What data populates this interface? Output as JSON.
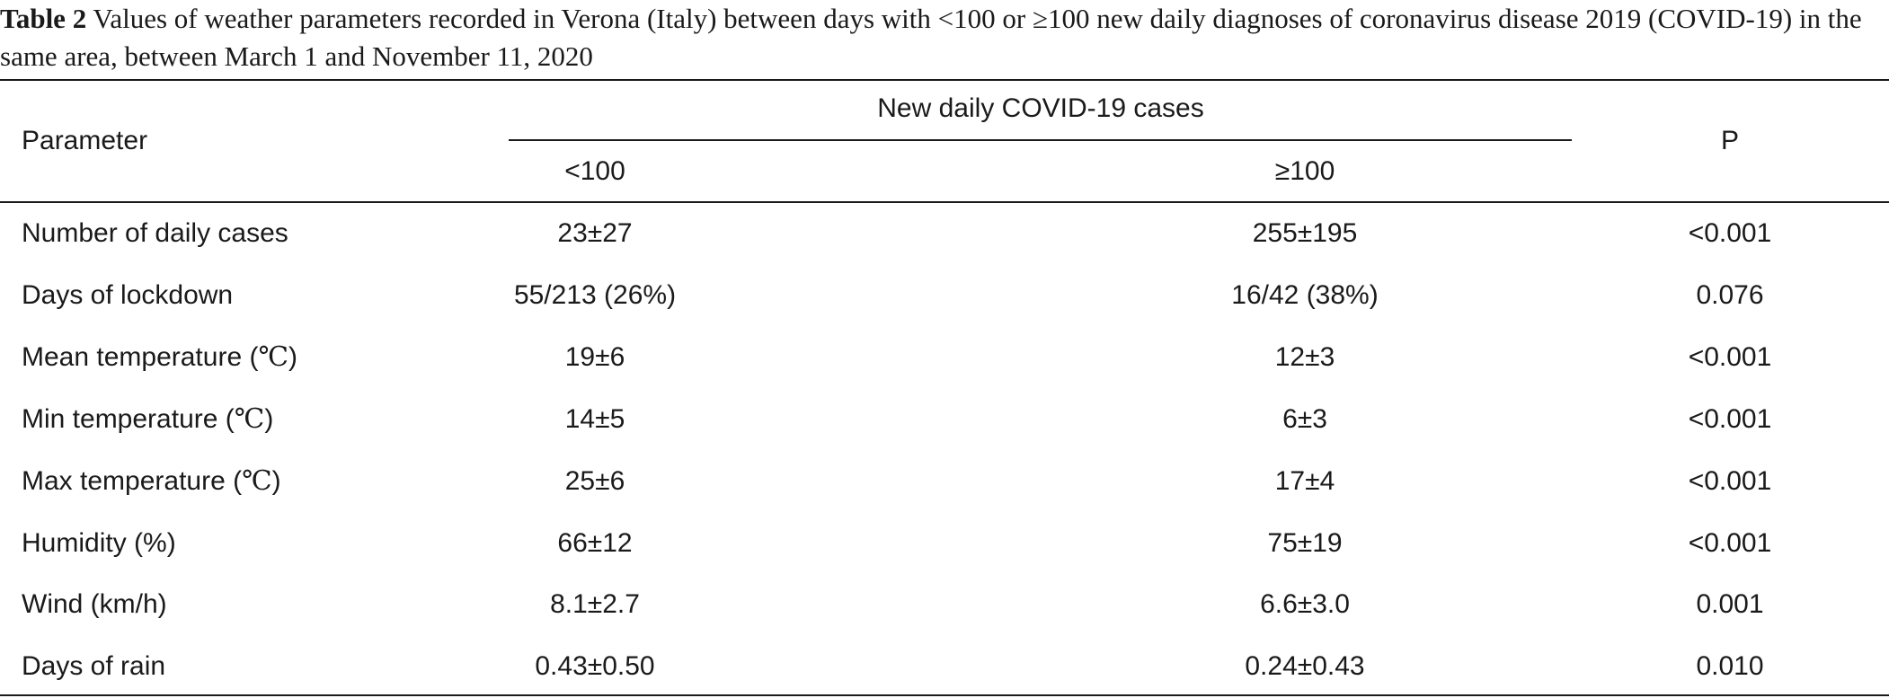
{
  "caption": {
    "label": "Table 2",
    "text": " Values of weather parameters recorded in Verona (Italy) between days with <100 or ≥100 new daily diagnoses of coronavirus disease 2019 (COVID-19) in the same area, between March 1 and November 11, 2020"
  },
  "header": {
    "parameter": "Parameter",
    "span": "New daily COVID-19 cases",
    "col_low": "<100",
    "col_high": "≥100",
    "col_p": "P"
  },
  "rows": [
    {
      "parameter": "Number of daily cases",
      "unit": "",
      "low": "23±27",
      "high": "255±195",
      "p": "<0.001"
    },
    {
      "parameter": "Days of lockdown",
      "unit": "",
      "low": "55/213 (26%)",
      "high": "16/42 (38%)",
      "p": "0.076"
    },
    {
      "parameter": "Mean temperature (",
      "unit": "℃",
      "unit_close": ")",
      "low": "19±6",
      "high": "12±3",
      "p": "<0.001"
    },
    {
      "parameter": "Min temperature (",
      "unit": "℃",
      "unit_close": ")",
      "low": "14±5",
      "high": "6±3",
      "p": "<0.001"
    },
    {
      "parameter": "Max temperature (",
      "unit": "℃",
      "unit_close": ")",
      "low": "25±6",
      "high": "17±4",
      "p": "<0.001"
    },
    {
      "parameter": "Humidity (%)",
      "unit": "",
      "low": "66±12",
      "high": "75±19",
      "p": "<0.001"
    },
    {
      "parameter": "Wind (km/h)",
      "unit": "",
      "low": "8.1±2.7",
      "high": "6.6±3.0",
      "p": "0.001"
    },
    {
      "parameter": "Days of rain",
      "unit": "",
      "low": "0.43±0.50",
      "high": "0.24±0.43",
      "p": "0.010"
    }
  ]
}
